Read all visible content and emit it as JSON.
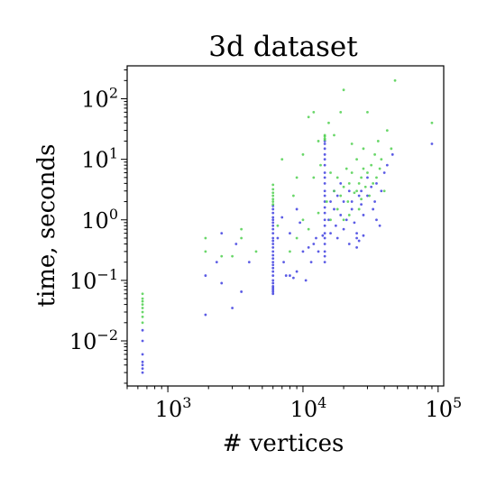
{
  "chart_data": {
    "type": "scatter",
    "title": "3d dataset",
    "xlabel": "# vertices",
    "ylabel": "time, seconds",
    "xscale": "log",
    "yscale": "log",
    "xlim": [
      500,
      110000
    ],
    "ylim": [
      0.0018,
      350
    ],
    "grid": false,
    "legend": "none",
    "x_ticks": [
      {
        "value": 1000,
        "base": "10",
        "exp": "3"
      },
      {
        "value": 10000,
        "base": "10",
        "exp": "4"
      },
      {
        "value": 100000,
        "base": "10",
        "exp": "5"
      }
    ],
    "y_ticks": [
      {
        "value": 0.01,
        "base": "10",
        "exp": "−2"
      },
      {
        "value": 0.1,
        "base": "10",
        "exp": "−1"
      },
      {
        "value": 1,
        "base": "10",
        "exp": "0"
      },
      {
        "value": 10,
        "base": "10",
        "exp": "1"
      },
      {
        "value": 100,
        "base": "10",
        "exp": "2"
      }
    ],
    "series": [
      {
        "color": "#4040e0",
        "points": [
          [
            650,
            0.003
          ],
          [
            650,
            0.0035
          ],
          [
            650,
            0.004
          ],
          [
            650,
            0.0045
          ],
          [
            650,
            0.006
          ],
          [
            650,
            0.01
          ],
          [
            650,
            0.015
          ],
          [
            1900,
            0.027
          ],
          [
            1900,
            0.12
          ],
          [
            2300,
            0.2
          ],
          [
            2500,
            0.09
          ],
          [
            2500,
            0.6
          ],
          [
            3000,
            0.035
          ],
          [
            3200,
            0.4
          ],
          [
            3500,
            0.065
          ],
          [
            4000,
            0.2
          ],
          [
            6000,
            0.06
          ],
          [
            6000,
            0.065
          ],
          [
            6000,
            0.07
          ],
          [
            6000,
            0.075
          ],
          [
            6000,
            0.08
          ],
          [
            6000,
            0.09
          ],
          [
            6000,
            0.1
          ],
          [
            6000,
            0.12
          ],
          [
            6000,
            0.14
          ],
          [
            6000,
            0.16
          ],
          [
            6000,
            0.18
          ],
          [
            6000,
            0.2
          ],
          [
            6000,
            0.23
          ],
          [
            6000,
            0.26
          ],
          [
            6000,
            0.3
          ],
          [
            6000,
            0.35
          ],
          [
            6000,
            0.4
          ],
          [
            6000,
            0.45
          ],
          [
            6000,
            0.5
          ],
          [
            6000,
            0.6
          ],
          [
            6000,
            0.7
          ],
          [
            6000,
            0.8
          ],
          [
            6000,
            0.9
          ],
          [
            6000,
            1.0
          ],
          [
            6000,
            1.1
          ],
          [
            6000,
            1.3
          ],
          [
            6000,
            1.5
          ],
          [
            6000,
            1.7
          ],
          [
            6500,
            0.5
          ],
          [
            7000,
            1.1
          ],
          [
            7200,
            0.2
          ],
          [
            7500,
            0.12
          ],
          [
            8000,
            0.6
          ],
          [
            8000,
            0.12
          ],
          [
            8500,
            0.11
          ],
          [
            9000,
            0.14
          ],
          [
            9000,
            1.5
          ],
          [
            9500,
            0.9
          ],
          [
            10000,
            0.3
          ],
          [
            10500,
            0.1
          ],
          [
            11000,
            0.35
          ],
          [
            11500,
            0.2
          ],
          [
            12000,
            0.4
          ],
          [
            12500,
            0.5
          ],
          [
            13000,
            0.3
          ],
          [
            14000,
            0.55
          ],
          [
            14500,
            0.2
          ],
          [
            14500,
            0.25
          ],
          [
            14500,
            0.3
          ],
          [
            14500,
            0.4
          ],
          [
            14500,
            0.5
          ],
          [
            14500,
            0.6
          ],
          [
            14500,
            0.8
          ],
          [
            14500,
            1.0
          ],
          [
            14500,
            1.3
          ],
          [
            14500,
            1.6
          ],
          [
            14500,
            2.0
          ],
          [
            14500,
            2.5
          ],
          [
            14500,
            3.0
          ],
          [
            14500,
            4.0
          ],
          [
            14500,
            5.0
          ],
          [
            14500,
            6.0
          ],
          [
            14500,
            8.0
          ],
          [
            14500,
            10
          ],
          [
            14500,
            12
          ],
          [
            14500,
            15
          ],
          [
            14500,
            18
          ],
          [
            14500,
            20
          ],
          [
            15500,
            1.0
          ],
          [
            16000,
            2.0
          ],
          [
            16000,
            0.6
          ],
          [
            17000,
            1.5
          ],
          [
            17000,
            3.0
          ],
          [
            17500,
            0.8
          ],
          [
            18000,
            0.5
          ],
          [
            18000,
            2.5
          ],
          [
            19000,
            1.2
          ],
          [
            19000,
            4.0
          ],
          [
            20000,
            0.7
          ],
          [
            20000,
            2.0
          ],
          [
            21000,
            1.0
          ],
          [
            22000,
            3.0
          ],
          [
            22000,
            0.4
          ],
          [
            23000,
            1.5
          ],
          [
            23000,
            2.0
          ],
          [
            24000,
            0.9
          ],
          [
            25000,
            0.35
          ],
          [
            25000,
            0.5
          ],
          [
            25000,
            0.6
          ],
          [
            26000,
            2.5
          ],
          [
            26000,
            0.45
          ],
          [
            27000,
            3.0
          ],
          [
            27000,
            1.8
          ],
          [
            28000,
            1.2
          ],
          [
            28000,
            0.55
          ],
          [
            30000,
            2.5
          ],
          [
            30000,
            5.0
          ],
          [
            32000,
            3.5
          ],
          [
            33000,
            1.5
          ],
          [
            34000,
            2.0
          ],
          [
            35000,
            1.0
          ],
          [
            35000,
            4.0
          ],
          [
            37000,
            0.8
          ],
          [
            38000,
            3.0
          ],
          [
            40000,
            6.0
          ],
          [
            42000,
            8.0
          ],
          [
            46000,
            12
          ],
          [
            90000,
            18
          ]
        ]
      },
      {
        "color": "#50d050",
        "points": [
          [
            650,
            0.02
          ],
          [
            650,
            0.025
          ],
          [
            650,
            0.03
          ],
          [
            650,
            0.035
          ],
          [
            650,
            0.04
          ],
          [
            650,
            0.045
          ],
          [
            650,
            0.05
          ],
          [
            650,
            0.06
          ],
          [
            1900,
            0.3
          ],
          [
            1900,
            0.5
          ],
          [
            2500,
            0.25
          ],
          [
            3000,
            0.25
          ],
          [
            3500,
            0.5
          ],
          [
            3500,
            0.7
          ],
          [
            4500,
            0.3
          ],
          [
            6000,
            1.8
          ],
          [
            6000,
            2.0
          ],
          [
            6000,
            2.2
          ],
          [
            6000,
            2.5
          ],
          [
            6000,
            2.8
          ],
          [
            6000,
            3.2
          ],
          [
            6000,
            3.8
          ],
          [
            6500,
            0.8
          ],
          [
            7000,
            10
          ],
          [
            8000,
            0.3
          ],
          [
            8500,
            2.5
          ],
          [
            9000,
            0.5
          ],
          [
            9000,
            5.0
          ],
          [
            10000,
            1.0
          ],
          [
            10000,
            12
          ],
          [
            11000,
            0.7
          ],
          [
            11000,
            50
          ],
          [
            12000,
            60
          ],
          [
            12000,
            5.0
          ],
          [
            13000,
            1.3
          ],
          [
            13000,
            20
          ],
          [
            13500,
            8.0
          ],
          [
            14500,
            21
          ],
          [
            14500,
            22
          ],
          [
            14500,
            24
          ],
          [
            14500,
            25
          ],
          [
            15000,
            2.0
          ],
          [
            15500,
            40
          ],
          [
            16000,
            1.0
          ],
          [
            16000,
            6.0
          ],
          [
            17000,
            3.0
          ],
          [
            17000,
            25
          ],
          [
            18000,
            1.5
          ],
          [
            18000,
            5.0
          ],
          [
            19000,
            2.5
          ],
          [
            19000,
            60
          ],
          [
            20000,
            1.0
          ],
          [
            20000,
            3.5
          ],
          [
            20000,
            140
          ],
          [
            21000,
            7.0
          ],
          [
            21500,
            2.0
          ],
          [
            22000,
            4.0
          ],
          [
            22000,
            1.2
          ],
          [
            23000,
            6.0
          ],
          [
            23000,
            18
          ],
          [
            24000,
            2.8
          ],
          [
            25000,
            3.0
          ],
          [
            25000,
            10
          ],
          [
            26000,
            4.0
          ],
          [
            26000,
            1.5
          ],
          [
            27000,
            5.0
          ],
          [
            27000,
            2.2
          ],
          [
            28000,
            7.0
          ],
          [
            28000,
            15
          ],
          [
            29000,
            3.5
          ],
          [
            30000,
            6.0
          ],
          [
            30000,
            60
          ],
          [
            31000,
            2.5
          ],
          [
            32000,
            8.0
          ],
          [
            33000,
            4.0
          ],
          [
            34000,
            12
          ],
          [
            35000,
            5.0
          ],
          [
            36000,
            20
          ],
          [
            37000,
            7.0
          ],
          [
            38000,
            10
          ],
          [
            40000,
            3.0
          ],
          [
            42000,
            30
          ],
          [
            45000,
            15
          ],
          [
            48000,
            200
          ],
          [
            90000,
            40
          ]
        ]
      }
    ]
  }
}
